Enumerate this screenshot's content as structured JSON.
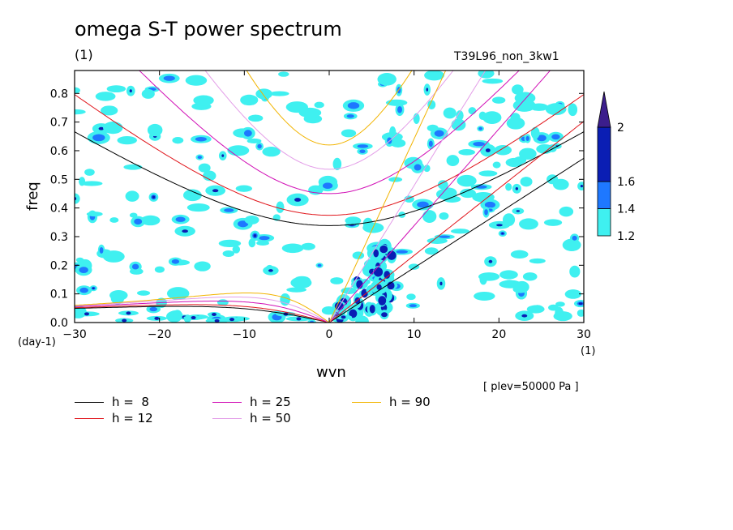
{
  "header": {
    "title": "omega S-T power spectrum",
    "subtitle_left": "(1)",
    "subtitle_right": "T39L96_non_3kw1"
  },
  "axes": {
    "xlabel": "wvn",
    "ylabel": "freq",
    "y_unit": "(day-1)",
    "x_unit": "(1)",
    "plev": "[ plev=50000 Pa ]"
  },
  "chart_data": {
    "type": "heatmap",
    "title": "omega S-T power spectrum",
    "xlabel": "wvn",
    "ylabel": "freq",
    "xlim": [
      -30,
      30
    ],
    "ylim": [
      0,
      0.88
    ],
    "xticks": [
      -30,
      -20,
      -10,
      0,
      10,
      20,
      30
    ],
    "yticks": [
      0.0,
      0.1,
      0.2,
      0.3,
      0.4,
      0.5,
      0.6,
      0.7,
      0.8
    ],
    "colorbar": {
      "levels": [
        1.2,
        1.4,
        1.6,
        2
      ],
      "colors": [
        "#3ff0f0",
        "#1e78ff",
        "#0a1eb4",
        "#3c1e8c"
      ]
    },
    "dispersion_curves": [
      {
        "label": "h =  8",
        "h": 8,
        "color": "#000000"
      },
      {
        "label": "h = 12",
        "h": 12,
        "color": "#e0151b"
      },
      {
        "label": "h = 25",
        "h": 25,
        "color": "#d10fb6"
      },
      {
        "label": "h = 50",
        "h": 50,
        "color": "#e39ee8"
      },
      {
        "label": "h = 90",
        "h": 90,
        "color": "#f2b400"
      }
    ],
    "grid": false
  }
}
